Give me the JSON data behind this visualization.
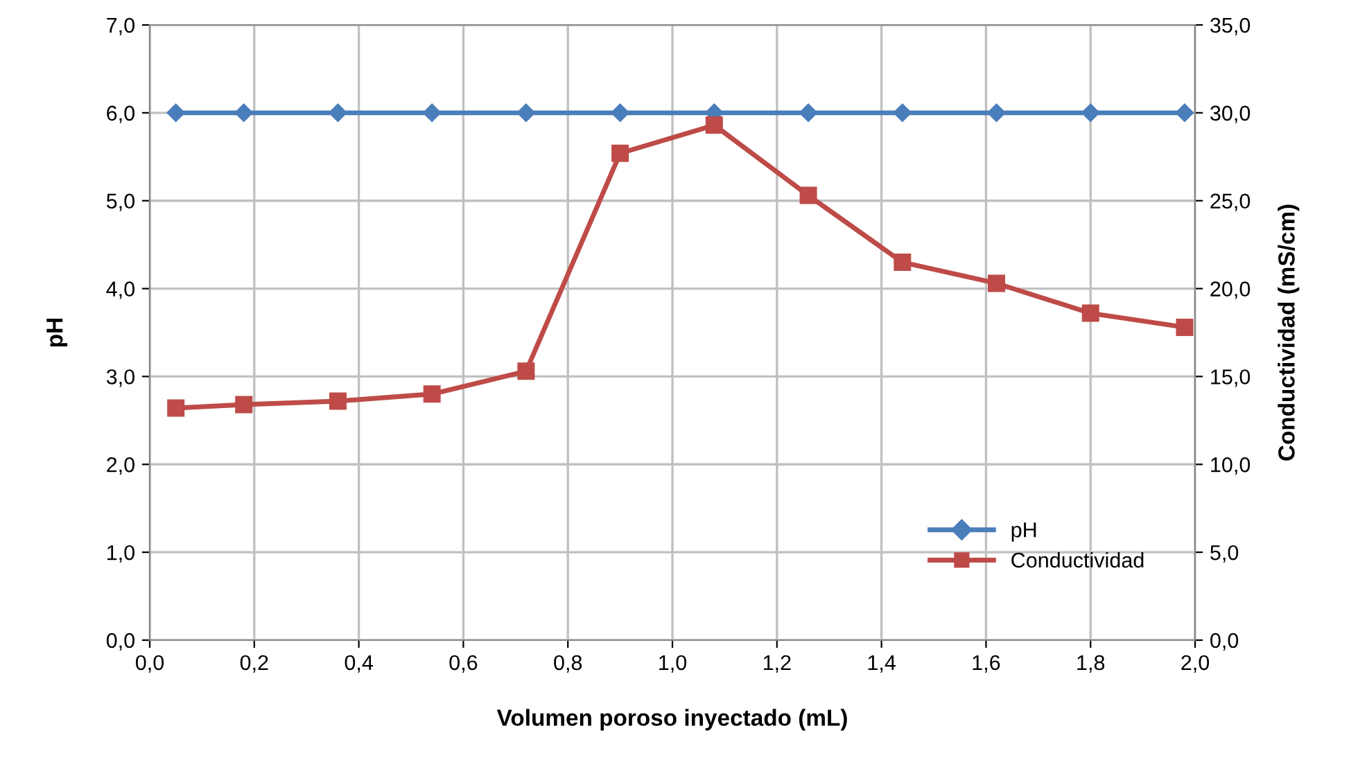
{
  "chart_data": {
    "type": "line",
    "xlabel": "Volumen poroso inyectado (mL)",
    "ylabel": "pH",
    "y2label": "Conductividad (mS/cm)",
    "x": [
      0.05,
      0.18,
      0.36,
      0.54,
      0.72,
      0.9,
      1.08,
      1.26,
      1.44,
      1.62,
      1.8,
      1.98
    ],
    "series": [
      {
        "name": "pH",
        "color": "#4a7ebb",
        "marker": "diamond",
        "values": [
          6.0,
          6.0,
          6.0,
          6.0,
          6.0,
          6.0,
          6.0,
          6.0,
          6.0,
          6.0,
          6.0,
          6.0
        ]
      },
      {
        "name": "Conductividad",
        "color": "#be4b48",
        "marker": "square",
        "axis": "y2",
        "values": [
          13.2,
          13.4,
          13.6,
          14.0,
          15.3,
          27.7,
          29.3,
          25.3,
          21.5,
          20.3,
          18.6,
          17.8
        ]
      }
    ],
    "xlim": [
      0,
      2.0
    ],
    "xticks": [
      {
        "value": 0,
        "label": "0,0"
      },
      {
        "value": 0.2,
        "label": "0,2"
      },
      {
        "value": 0.4,
        "label": "0,4"
      },
      {
        "value": 0.6,
        "label": "0,6"
      },
      {
        "value": 0.8,
        "label": "0,8"
      },
      {
        "value": 1.0,
        "label": "1,0"
      },
      {
        "value": 1.2,
        "label": "1,2"
      },
      {
        "value": 1.4,
        "label": "1,4"
      },
      {
        "value": 1.6,
        "label": "1,6"
      },
      {
        "value": 1.8,
        "label": "1,8"
      },
      {
        "value": 2.0,
        "label": "2,0"
      }
    ],
    "ylim": [
      0,
      7
    ],
    "yticks": [
      {
        "value": 0,
        "label": "0,0"
      },
      {
        "value": 1,
        "label": "1,0"
      },
      {
        "value": 2,
        "label": "2,0"
      },
      {
        "value": 3,
        "label": "3,0"
      },
      {
        "value": 4,
        "label": "4,0"
      },
      {
        "value": 5,
        "label": "5,0"
      },
      {
        "value": 6,
        "label": "6,0"
      },
      {
        "value": 7,
        "label": "7,0"
      }
    ],
    "y2lim": [
      0,
      35
    ],
    "y2ticks": [
      {
        "value": 0,
        "label": "0,0"
      },
      {
        "value": 5,
        "label": "5,0"
      },
      {
        "value": 10,
        "label": "10,0"
      },
      {
        "value": 15,
        "label": "15,0"
      },
      {
        "value": 20,
        "label": "20,0"
      },
      {
        "value": 25,
        "label": "25,0"
      },
      {
        "value": 30,
        "label": "30,0"
      },
      {
        "value": 35,
        "label": "35,0"
      }
    ],
    "grid": true,
    "legend": "bottom right",
    "line_style": "solid"
  }
}
